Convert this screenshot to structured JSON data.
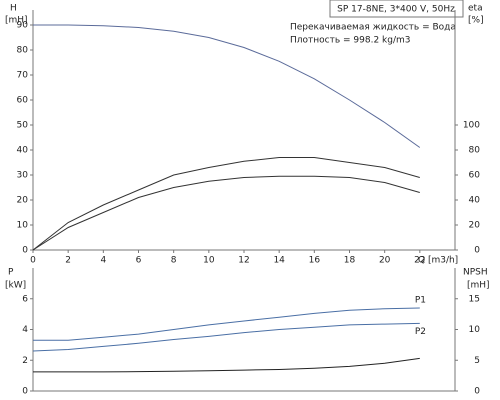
{
  "chart_data": [
    {
      "type": "line",
      "title": "SP 17-8NE, 3*400 V, 50Hz",
      "annotations": [
        "Перекачиваемая жидкость = Вода",
        "Плотность = 998.2 kg/m3"
      ],
      "y_label": [
        "H",
        "[mH]"
      ],
      "y2_label": [
        "eta",
        "[%]"
      ],
      "x_label": "Q [m3/h]",
      "x": [
        0,
        2,
        4,
        6,
        8,
        10,
        12,
        14,
        16,
        18,
        20,
        22
      ],
      "xlim": [
        0,
        24
      ],
      "xticks": [
        0,
        2,
        4,
        6,
        8,
        10,
        12,
        14,
        16,
        18,
        20,
        22
      ],
      "ylim": [
        0,
        96
      ],
      "yticks": [
        0,
        10,
        20,
        30,
        40,
        50,
        60,
        70,
        80,
        90
      ],
      "y2lim": [
        0,
        192
      ],
      "y2ticks": [
        0,
        20,
        40,
        60,
        80,
        100
      ],
      "grid": false,
      "series": [
        {
          "color": "#5b6b9a",
          "values": [
            90,
            90,
            89.7,
            89,
            87.5,
            85,
            81,
            75.5,
            68.5,
            60,
            51,
            41
          ]
        },
        {
          "color": "#333333",
          "axis": "y2",
          "values": [
            0,
            22,
            36,
            48,
            60,
            66,
            71,
            74,
            74,
            70,
            66,
            58
          ]
        },
        {
          "color": "#333333",
          "axis": "y2",
          "values": [
            0,
            18,
            30,
            42,
            50,
            55,
            58,
            59,
            59,
            58,
            54,
            46
          ]
        }
      ]
    },
    {
      "type": "line",
      "y_label": [
        "P",
        "[kW]"
      ],
      "y2_label": [
        "NPSH",
        "[mH]"
      ],
      "x": [
        0,
        2,
        4,
        6,
        8,
        10,
        12,
        14,
        16,
        18,
        20,
        22
      ],
      "xlim": [
        0,
        24
      ],
      "ylim": [
        0,
        8
      ],
      "yticks": [
        0,
        2,
        4,
        6
      ],
      "y2lim": [
        0,
        20
      ],
      "y2ticks": [
        0,
        5,
        10,
        15
      ],
      "grid": false,
      "series": [
        {
          "name": "P1",
          "color": "#4a6fa5",
          "values": [
            3.3,
            3.3,
            3.5,
            3.7,
            4.0,
            4.3,
            4.55,
            4.8,
            5.05,
            5.25,
            5.35,
            5.4
          ]
        },
        {
          "name": "P2",
          "color": "#4a6fa5",
          "values": [
            2.6,
            2.7,
            2.9,
            3.1,
            3.35,
            3.55,
            3.8,
            4.0,
            4.15,
            4.3,
            4.35,
            4.4
          ]
        },
        {
          "color": "#222222",
          "axis": "y2",
          "values": [
            3.1,
            3.1,
            3.1,
            3.15,
            3.2,
            3.3,
            3.4,
            3.5,
            3.7,
            4.0,
            4.5,
            5.3
          ]
        }
      ]
    }
  ]
}
